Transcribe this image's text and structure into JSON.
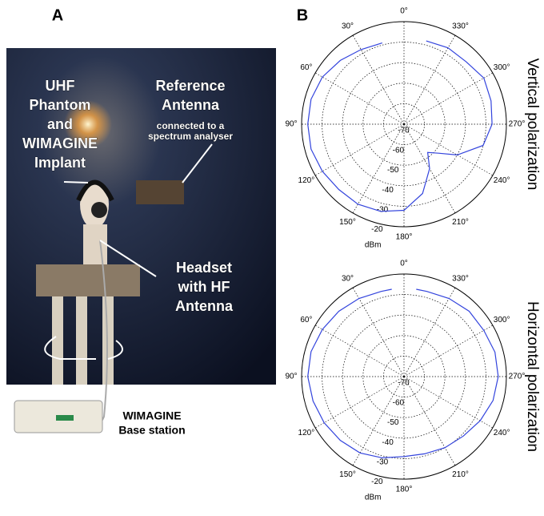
{
  "panel_labels": [
    "A",
    "B"
  ],
  "photo": {
    "labels": [
      [
        "UHF",
        "Phantom",
        "and",
        "WIMAGINE",
        "Implant"
      ],
      [
        "Reference",
        "Antenna"
      ],
      [
        "connected to a",
        "spectrum analyser"
      ],
      [
        "Headset",
        "with HF",
        "Antenna"
      ],
      [
        "WIMAGINE",
        "Base station"
      ]
    ]
  },
  "chart_data": [
    {
      "type": "polar",
      "title": "Vertical polarization",
      "rlabel": "dBm",
      "rlim": [
        -70,
        -20
      ],
      "rticks": [
        -70,
        -60,
        -50,
        -40,
        -30,
        -20
      ],
      "angle_ticks": [
        {
          "value": 0,
          "label": "0°"
        },
        {
          "value": 30,
          "label": "30°"
        },
        {
          "value": 60,
          "label": "60°"
        },
        {
          "value": 90,
          "label": "90°"
        },
        {
          "value": 120,
          "label": "120°"
        },
        {
          "value": 150,
          "label": "150°"
        },
        {
          "value": 180,
          "label": "180°"
        },
        {
          "value": 210,
          "label": "210°"
        },
        {
          "value": 240,
          "label": "240°"
        },
        {
          "value": 270,
          "label": "270°"
        },
        {
          "value": 300,
          "label": "300°"
        },
        {
          "value": 330,
          "label": "330°"
        }
      ],
      "x": [
        15,
        30,
        45,
        60,
        75,
        90,
        105,
        120,
        135,
        150,
        165,
        180,
        195,
        210,
        220,
        230,
        240,
        255,
        270,
        285,
        300,
        315,
        330,
        345
      ],
      "series": [
        {
          "color": "#3344dd",
          "values": [
            -29,
            -28,
            -26,
            -24,
            -23,
            -23,
            -23,
            -24,
            -25,
            -25,
            -26,
            -28,
            -35,
            -45,
            -52,
            -48,
            -40,
            -30,
            -27,
            -26,
            -25,
            -27,
            -27,
            -28
          ]
        }
      ]
    },
    {
      "type": "polar",
      "title": "Horizontal polarization",
      "rlabel": "dBm",
      "rlim": [
        -70,
        -20
      ],
      "rticks": [
        -70,
        -60,
        -50,
        -40,
        -30,
        -20
      ],
      "angle_ticks": [
        {
          "value": 0,
          "label": "0°"
        },
        {
          "value": 30,
          "label": "30°"
        },
        {
          "value": 60,
          "label": "60°"
        },
        {
          "value": 90,
          "label": "90°"
        },
        {
          "value": 120,
          "label": "120°"
        },
        {
          "value": 150,
          "label": "150°"
        },
        {
          "value": 180,
          "label": "180°"
        },
        {
          "value": 210,
          "label": "210°"
        },
        {
          "value": 240,
          "label": "240°"
        },
        {
          "value": 270,
          "label": "270°"
        },
        {
          "value": 300,
          "label": "300°"
        },
        {
          "value": 330,
          "label": "330°"
        }
      ],
      "x": [
        8,
        15,
        30,
        45,
        60,
        75,
        90,
        105,
        120,
        135,
        150,
        165,
        180,
        195,
        210,
        225,
        240,
        255,
        270,
        285,
        300,
        315,
        330,
        345,
        352
      ],
      "series": [
        {
          "color": "#3344dd",
          "values": [
            -27,
            -27,
            -26,
            -25,
            -24,
            -23,
            -23,
            -24,
            -25,
            -26,
            -27,
            -29,
            -31,
            -31,
            -30,
            -29,
            -27,
            -25,
            -24,
            -24,
            -25,
            -25,
            -26,
            -27,
            -27
          ]
        }
      ]
    }
  ]
}
